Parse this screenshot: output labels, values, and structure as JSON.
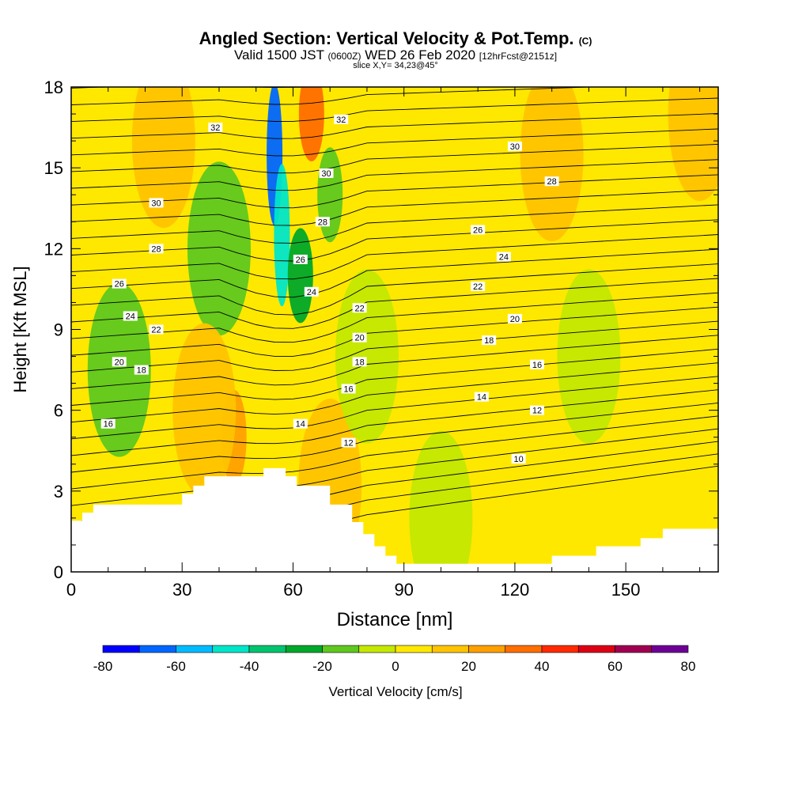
{
  "title": {
    "main": "Angled Section: Vertical Velocity & Pot.Temp.",
    "main_unit": "(C)",
    "valid_prefix": "Valid 1500 JST",
    "valid_utc": "(0600Z)",
    "valid_date": "WED 26 Feb 2020",
    "forecast": "[12hrFcst@2151z]",
    "slice": "slice X,Y= 34,23@45°"
  },
  "chart_data": {
    "type": "heatmap",
    "xlabel": "Distance [nm]",
    "ylabel": "Height [Kft MSL]",
    "xlim": [
      0,
      175
    ],
    "ylim": [
      0,
      18
    ],
    "x_ticks": [
      0,
      30,
      60,
      90,
      120,
      150
    ],
    "y_ticks": [
      0,
      3,
      6,
      9,
      12,
      15,
      18
    ],
    "colorbar": {
      "label": "Vertical Velocity [cm/s]",
      "range": [
        -80,
        80
      ],
      "tick_values": [
        -80,
        -60,
        -40,
        -20,
        0,
        20,
        40,
        60,
        80
      ],
      "colors": [
        "#0000ff",
        "#0066ff",
        "#00bbff",
        "#00e6c8",
        "#00c46e",
        "#00a82a",
        "#5fc81e",
        "#c4e800",
        "#ffe800",
        "#ffc400",
        "#ffa000",
        "#ff6e00",
        "#ff2a00",
        "#dc0014",
        "#a00050",
        "#6e0096"
      ]
    },
    "field_features": [
      {
        "x": 55,
        "y": 15.5,
        "value": -65
      },
      {
        "x": 57,
        "y": 12.5,
        "value": -45
      },
      {
        "x": 62,
        "y": 11.0,
        "value": -25
      },
      {
        "x": 40,
        "y": 12.0,
        "value": -15
      },
      {
        "x": 13,
        "y": 7.5,
        "value": -15
      },
      {
        "x": 70,
        "y": 14.0,
        "value": -20
      },
      {
        "x": 65,
        "y": 17.0,
        "value": 35
      },
      {
        "x": 25,
        "y": 16.0,
        "value": 15
      },
      {
        "x": 44,
        "y": 5.0,
        "value": 25
      },
      {
        "x": 36,
        "y": 6.0,
        "value": 12
      },
      {
        "x": 70,
        "y": 3.2,
        "value": 12
      },
      {
        "x": 130,
        "y": 15.5,
        "value": 15
      },
      {
        "x": 170,
        "y": 17.0,
        "value": 15
      },
      {
        "x": 118,
        "y": 6.0,
        "value": 4
      },
      {
        "x": 100,
        "y": 2.0,
        "value": -6
      },
      {
        "x": 80,
        "y": 8.0,
        "value": -5
      },
      {
        "x": 140,
        "y": 8.0,
        "value": -6
      }
    ],
    "terrain": [
      [
        0,
        1.9
      ],
      [
        3,
        1.9
      ],
      [
        3,
        2.2
      ],
      [
        6,
        2.2
      ],
      [
        6,
        2.5
      ],
      [
        30,
        2.5
      ],
      [
        30,
        2.9
      ],
      [
        33,
        2.9
      ],
      [
        33,
        3.2
      ],
      [
        36,
        3.2
      ],
      [
        36,
        3.55
      ],
      [
        52,
        3.55
      ],
      [
        52,
        3.85
      ],
      [
        58,
        3.85
      ],
      [
        58,
        3.55
      ],
      [
        61,
        3.55
      ],
      [
        61,
        3.2
      ],
      [
        70,
        3.2
      ],
      [
        70,
        2.5
      ],
      [
        76,
        2.5
      ],
      [
        76,
        1.85
      ],
      [
        79,
        1.85
      ],
      [
        79,
        1.4
      ],
      [
        82,
        1.4
      ],
      [
        82,
        0.95
      ],
      [
        85,
        0.95
      ],
      [
        85,
        0.6
      ],
      [
        88,
        0.6
      ],
      [
        88,
        0.3
      ],
      [
        130,
        0.3
      ],
      [
        130,
        0.6
      ],
      [
        142,
        0.6
      ],
      [
        142,
        0.95
      ],
      [
        154,
        0.95
      ],
      [
        154,
        1.25
      ],
      [
        160,
        1.25
      ],
      [
        160,
        1.6
      ],
      [
        175,
        1.6
      ]
    ],
    "contour_labels": [
      {
        "x": 39,
        "y": 16.5,
        "value": "32"
      },
      {
        "x": 73,
        "y": 16.8,
        "value": "32"
      },
      {
        "x": 69,
        "y": 14.8,
        "value": "30"
      },
      {
        "x": 120,
        "y": 15.8,
        "value": "30"
      },
      {
        "x": 23,
        "y": 13.7,
        "value": "30"
      },
      {
        "x": 130,
        "y": 14.5,
        "value": "28"
      },
      {
        "x": 68,
        "y": 13.0,
        "value": "28"
      },
      {
        "x": 23,
        "y": 12.0,
        "value": "28"
      },
      {
        "x": 110,
        "y": 12.7,
        "value": "26"
      },
      {
        "x": 62,
        "y": 11.6,
        "value": "26"
      },
      {
        "x": 13,
        "y": 10.7,
        "value": "26"
      },
      {
        "x": 117,
        "y": 11.7,
        "value": "24"
      },
      {
        "x": 65,
        "y": 10.4,
        "value": "24"
      },
      {
        "x": 16,
        "y": 9.5,
        "value": "24"
      },
      {
        "x": 110,
        "y": 10.6,
        "value": "22"
      },
      {
        "x": 78,
        "y": 9.8,
        "value": "22"
      },
      {
        "x": 23,
        "y": 9.0,
        "value": "22"
      },
      {
        "x": 120,
        "y": 9.4,
        "value": "20"
      },
      {
        "x": 78,
        "y": 8.7,
        "value": "20"
      },
      {
        "x": 13,
        "y": 7.8,
        "value": "20"
      },
      {
        "x": 113,
        "y": 8.6,
        "value": "18"
      },
      {
        "x": 78,
        "y": 7.8,
        "value": "18"
      },
      {
        "x": 19,
        "y": 7.5,
        "value": "18"
      },
      {
        "x": 126,
        "y": 7.7,
        "value": "16"
      },
      {
        "x": 75,
        "y": 6.8,
        "value": "16"
      },
      {
        "x": 10,
        "y": 5.5,
        "value": "16"
      },
      {
        "x": 111,
        "y": 6.5,
        "value": "14"
      },
      {
        "x": 62,
        "y": 5.5,
        "value": "14"
      },
      {
        "x": 126,
        "y": 6.0,
        "value": "12"
      },
      {
        "x": 75,
        "y": 4.8,
        "value": "12"
      },
      {
        "x": 121,
        "y": 4.2,
        "value": "10"
      }
    ]
  }
}
